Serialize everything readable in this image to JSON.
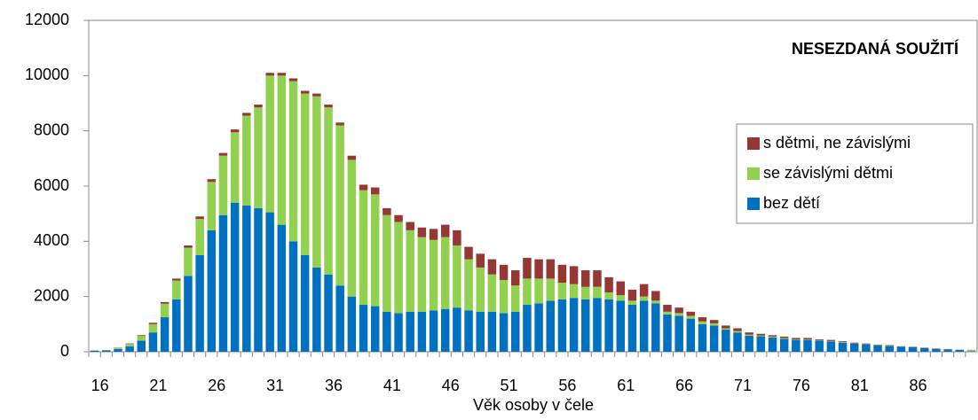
{
  "chart_data": {
    "type": "stacked_bar",
    "title": "NESEZDANÁ SOUŽITÍ",
    "x_label": "Věk osoby v čele",
    "categories": [
      "16",
      null,
      null,
      null,
      null,
      "21",
      null,
      null,
      null,
      null,
      "26",
      null,
      null,
      null,
      null,
      "31",
      null,
      null,
      null,
      null,
      "36",
      null,
      null,
      null,
      null,
      "41",
      null,
      null,
      null,
      null,
      "46",
      null,
      null,
      null,
      null,
      "51",
      null,
      null,
      null,
      null,
      "56",
      null,
      null,
      null,
      null,
      "61",
      null,
      null,
      null,
      null,
      "66",
      null,
      null,
      null,
      null,
      "71",
      null,
      null,
      null,
      null,
      "76",
      null,
      null,
      null,
      null,
      "81",
      null,
      null,
      null,
      null,
      "86",
      null,
      null,
      null,
      null,
      null
    ],
    "series": [
      {
        "name": "bez dětí",
        "color": "#0070c0",
        "values": [
          40,
          50,
          100,
          200,
          400,
          700,
          1250,
          1900,
          2750,
          3500,
          4400,
          4950,
          5400,
          5300,
          5200,
          5050,
          4600,
          4000,
          3500,
          3050,
          2800,
          2400,
          2000,
          1700,
          1650,
          1450,
          1400,
          1450,
          1450,
          1500,
          1550,
          1600,
          1500,
          1450,
          1450,
          1400,
          1450,
          1700,
          1750,
          1850,
          1900,
          1950,
          1900,
          1950,
          1900,
          1850,
          1700,
          1850,
          1750,
          1350,
          1300,
          1200,
          1000,
          950,
          800,
          700,
          580,
          560,
          520,
          470,
          430,
          430,
          400,
          370,
          330,
          290,
          260,
          230,
          210,
          180,
          160,
          130,
          100,
          90,
          70,
          20
        ]
      },
      {
        "name": "se závislými  dětmi",
        "color": "#92d050",
        "values": [
          5,
          5,
          40,
          80,
          170,
          300,
          490,
          680,
          1020,
          1310,
          1750,
          2150,
          2550,
          3250,
          3650,
          4950,
          5400,
          5800,
          5850,
          6200,
          6050,
          5800,
          4950,
          4150,
          4050,
          3500,
          3300,
          2950,
          2700,
          2550,
          2600,
          2250,
          1850,
          1600,
          1350,
          1200,
          950,
          950,
          900,
          800,
          600,
          500,
          450,
          400,
          250,
          200,
          150,
          150,
          100,
          100,
          100,
          100,
          100,
          80,
          50,
          50,
          40,
          30,
          30,
          30,
          20,
          20,
          20,
          20,
          20,
          10,
          10,
          10,
          10,
          5,
          5,
          5,
          5,
          5,
          5,
          45
        ]
      },
      {
        "name": "s dětmi, ne závislými",
        "color": "#953735",
        "values": [
          5,
          5,
          10,
          20,
          30,
          50,
          60,
          70,
          80,
          90,
          100,
          100,
          100,
          100,
          100,
          100,
          100,
          100,
          100,
          100,
          100,
          100,
          150,
          200,
          250,
          250,
          250,
          300,
          350,
          400,
          450,
          550,
          450,
          500,
          550,
          550,
          550,
          750,
          700,
          700,
          650,
          650,
          600,
          600,
          550,
          500,
          400,
          450,
          350,
          250,
          200,
          150,
          150,
          120,
          100,
          100,
          80,
          60,
          50,
          50,
          50,
          50,
          30,
          40,
          30,
          30,
          30,
          20,
          20,
          15,
          15,
          15,
          15,
          5,
          5,
          5
        ]
      }
    ],
    "ylim": [
      0,
      12000
    ],
    "yticks": [
      0,
      2000,
      4000,
      6000,
      8000,
      10000,
      12000
    ],
    "grid": false,
    "legend_position": "right"
  }
}
